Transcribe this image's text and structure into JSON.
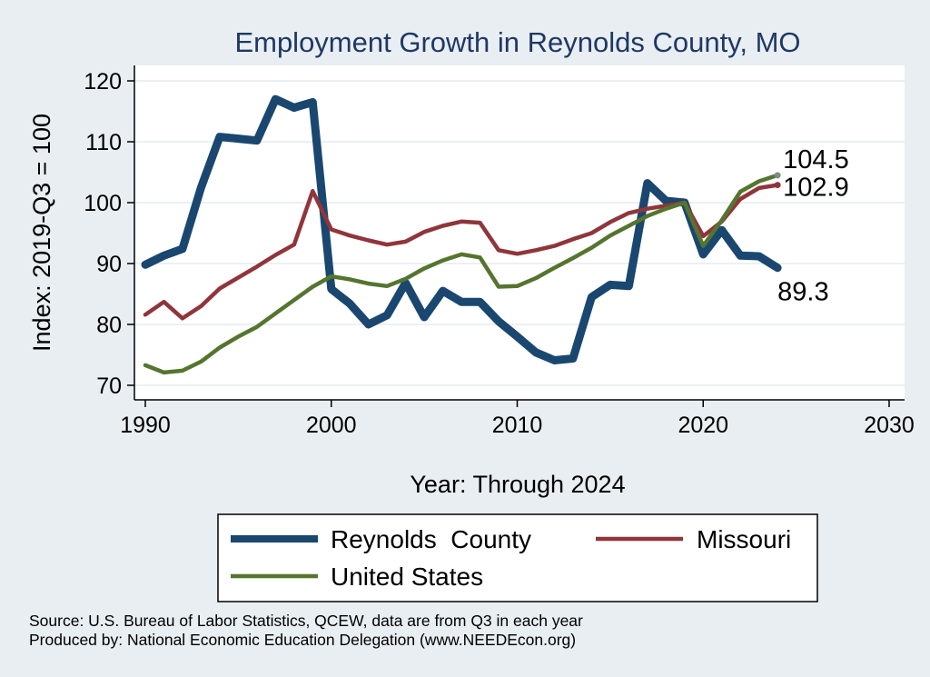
{
  "chart_data": {
    "type": "line",
    "title": "Employment Growth in Reynolds County, MO",
    "xlabel": "Year: Through 2024",
    "ylabel": "Index: 2019-Q3 = 100",
    "xlim": [
      1990,
      2030
    ],
    "ylim": [
      70,
      120
    ],
    "x_ticks": [
      1990,
      2000,
      2010,
      2020,
      2030
    ],
    "y_ticks": [
      70,
      80,
      90,
      100,
      110,
      120
    ],
    "grid": true,
    "legend_position": "bottom",
    "x": [
      1990,
      1991,
      1992,
      1993,
      1994,
      1995,
      1996,
      1997,
      1998,
      1999,
      2000,
      2001,
      2002,
      2003,
      2004,
      2005,
      2006,
      2007,
      2008,
      2009,
      2010,
      2011,
      2012,
      2013,
      2014,
      2015,
      2016,
      2017,
      2018,
      2019,
      2020,
      2021,
      2022,
      2023,
      2024
    ],
    "series": [
      {
        "name": "Reynolds  County",
        "color": "#1a476f",
        "values": [
          89.8,
          91.3,
          92.4,
          102.5,
          110.8,
          110.5,
          110.2,
          117.0,
          115.6,
          116.5,
          85.8,
          83.4,
          80.0,
          81.5,
          86.8,
          81.2,
          85.5,
          83.7,
          83.7,
          80.5,
          78.0,
          75.4,
          74.1,
          74.4,
          84.5,
          86.5,
          86.3,
          103.2,
          100.3,
          100.0,
          91.5,
          95.5,
          91.3,
          91.2,
          89.3
        ],
        "end_label": "89.3"
      },
      {
        "name": "Missouri",
        "color": "#90353b",
        "values": [
          81.6,
          83.7,
          81.0,
          83.0,
          85.9,
          87.7,
          89.5,
          91.4,
          93.1,
          101.9,
          95.6,
          94.6,
          93.8,
          93.1,
          93.6,
          95.2,
          96.2,
          96.9,
          96.7,
          92.2,
          91.6,
          92.2,
          92.9,
          94.0,
          95.0,
          96.8,
          98.3,
          99.0,
          99.5,
          100.0,
          94.5,
          96.9,
          100.6,
          102.4,
          102.9
        ],
        "end_label": "102.9"
      },
      {
        "name": "United States",
        "color": "#55752f",
        "values": [
          73.3,
          72.1,
          72.4,
          73.9,
          76.2,
          78.0,
          79.6,
          81.8,
          84.0,
          86.2,
          87.9,
          87.4,
          86.7,
          86.3,
          87.5,
          89.2,
          90.5,
          91.5,
          91.0,
          86.2,
          86.3,
          87.6,
          89.3,
          90.9,
          92.6,
          94.6,
          96.2,
          97.8,
          99.0,
          100.0,
          92.9,
          97.1,
          101.8,
          103.5,
          104.5
        ],
        "end_label": "104.5"
      }
    ],
    "legend": {
      "entries": [
        "Reynolds  County",
        "Missouri",
        "United States"
      ]
    }
  },
  "footer": {
    "source": "Source: U.S. Bureau of Labor Statistics, QCEW, data are from Q3 in each year",
    "produced_by": "Produced by: National Economic Education Delegation (www.NEEDEcon.org)"
  }
}
